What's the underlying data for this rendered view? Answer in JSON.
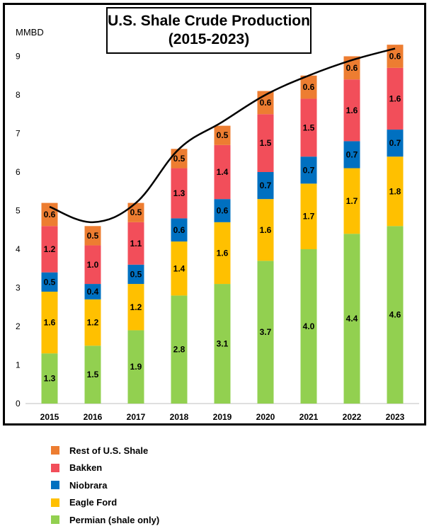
{
  "chart_data": {
    "type": "bar",
    "stacked": true,
    "title_line1": "U.S. Shale Crude Production",
    "title_line2": "(2015-2023)",
    "ylabel": "MMBD",
    "xlabel": "",
    "ylim": [
      0,
      9.5
    ],
    "yticks": [
      "0",
      "1",
      "2",
      "3",
      "4",
      "5",
      "6",
      "7",
      "8",
      "9"
    ],
    "categories": [
      "2015",
      "2016",
      "2017",
      "2018",
      "2019",
      "2020",
      "2021",
      "2022",
      "2023"
    ],
    "grid": false,
    "legend_position": "bottom",
    "series": [
      {
        "name": "Permian (shale only)",
        "color": "#92d050",
        "values": [
          1.3,
          1.5,
          1.9,
          2.8,
          3.1,
          3.7,
          4.0,
          4.4,
          4.6
        ],
        "labels": [
          "1.3",
          "1.5",
          "1.9",
          "2.8",
          "3.1",
          "3.7",
          "4.0",
          "4.4",
          "4.6"
        ]
      },
      {
        "name": "Eagle Ford",
        "color": "#ffc000",
        "values": [
          1.6,
          1.2,
          1.2,
          1.4,
          1.6,
          1.6,
          1.7,
          1.7,
          1.8
        ],
        "labels": [
          "1.6",
          "1.2",
          "1.2",
          "1.4",
          "1.6",
          "1.6",
          "1.7",
          "1.7",
          "1.8"
        ]
      },
      {
        "name": "Niobrara",
        "color": "#0070c0",
        "values": [
          0.5,
          0.4,
          0.5,
          0.6,
          0.6,
          0.7,
          0.7,
          0.7,
          0.7
        ],
        "labels": [
          "0.5",
          "0.4",
          "0.5",
          "0.6",
          "0.6",
          "0.7",
          "0.7",
          "0.7",
          "0.7"
        ]
      },
      {
        "name": "Bakken",
        "color": "#f24e5a",
        "values": [
          1.2,
          1.0,
          1.1,
          1.3,
          1.4,
          1.5,
          1.5,
          1.6,
          1.6
        ],
        "labels": [
          "1.2",
          "1.0",
          "1.1",
          "1.3",
          "1.4",
          "1.5",
          "1.5",
          "1.6",
          "1.6"
        ]
      },
      {
        "name": "Rest of U.S. Shale",
        "color": "#ed7d31",
        "values": [
          0.6,
          0.5,
          0.5,
          0.5,
          0.5,
          0.6,
          0.6,
          0.6,
          0.6
        ],
        "labels": [
          "0.6",
          "0.5",
          "0.5",
          "0.5",
          "0.5",
          "0.6",
          "0.6",
          "0.6",
          "0.6"
        ]
      }
    ],
    "total_line": {
      "color": "#000000",
      "values": [
        5.1,
        4.7,
        5.2,
        6.6,
        7.3,
        8.0,
        8.5,
        8.9,
        9.2
      ]
    },
    "legend_order": [
      "Rest of U.S. Shale",
      "Bakken",
      "Niobrara",
      "Eagle Ford",
      "Permian (shale only)"
    ]
  }
}
